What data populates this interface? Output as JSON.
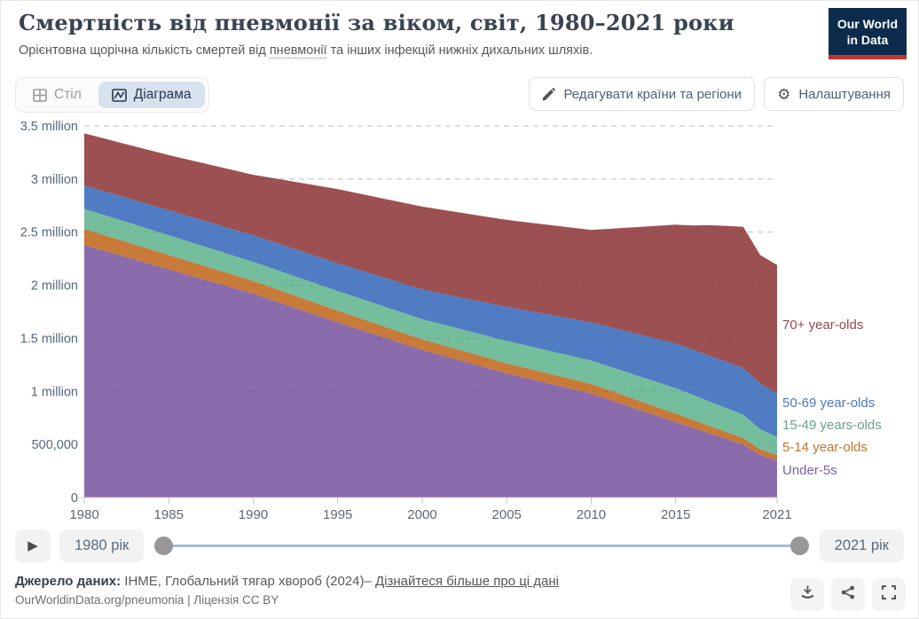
{
  "header": {
    "title": "Смертність від пневмонії за віком, світ, 1980–2021 роки",
    "subtitle_prefix": "Орієнтовна щорічна кількість смертей від ",
    "subtitle_link": "пневмонії",
    "subtitle_suffix": " та інших інфекцій нижніх дихальних шляхів.",
    "logo_line1": "Our World",
    "logo_line2": "in Data",
    "logo_bg_color": "#0d2b4c",
    "logo_accent_color": "#c0362c"
  },
  "toolbar": {
    "tab_table": "Стіл",
    "tab_chart": "Діаграма",
    "active_tab": "Діаграма",
    "active_tab_bg": "#d7e2ee",
    "edit_button": "Редагувати країни та регіони",
    "settings_button": "Налаштування"
  },
  "chart_data": {
    "type": "area",
    "stacked": true,
    "title": "Смертність від пневмонії за віком, світ, 1980–2021 роки",
    "unit": "deaths per year (millions)",
    "grid": "dashed",
    "legend_position": "right-edge-labels",
    "ylim": [
      0,
      3.5
    ],
    "y_ticks": [
      0,
      0.5,
      1,
      1.5,
      2,
      2.5,
      3,
      3.5
    ],
    "y_tick_labels": [
      "0",
      "500,000",
      "1 million",
      "1.5 million",
      "2 million",
      "2.5 million",
      "3 million",
      "3.5 million"
    ],
    "x_ticks": [
      1980,
      1985,
      1990,
      1995,
      2000,
      2005,
      2010,
      2015,
      2021
    ],
    "x": [
      1980,
      1981,
      1982,
      1983,
      1984,
      1985,
      1986,
      1987,
      1988,
      1989,
      1990,
      1991,
      1992,
      1993,
      1994,
      1995,
      1996,
      1997,
      1998,
      1999,
      2000,
      2001,
      2002,
      2003,
      2004,
      2005,
      2006,
      2007,
      2008,
      2009,
      2010,
      2011,
      2012,
      2013,
      2014,
      2015,
      2016,
      2017,
      2018,
      2019,
      2020,
      2021
    ],
    "series": [
      {
        "name": "Under-5s",
        "color": "#8a6bab",
        "label_color": "#7d61a4",
        "legend_y": 387,
        "values": [
          2.38,
          2.334,
          2.288,
          2.242,
          2.196,
          2.15,
          2.104,
          2.058,
          2.012,
          1.966,
          1.92,
          1.866,
          1.812,
          1.758,
          1.704,
          1.65,
          1.598,
          1.546,
          1.494,
          1.442,
          1.39,
          1.346,
          1.302,
          1.258,
          1.214,
          1.17,
          1.132,
          1.094,
          1.056,
          1.018,
          0.98,
          0.926,
          0.872,
          0.818,
          0.764,
          0.71,
          0.658,
          0.605,
          0.553,
          0.5,
          0.4,
          0.35
        ]
      },
      {
        "name": "5-14 year-olds",
        "color": "#c87a38",
        "label_color": "#c17332",
        "legend_y": 361,
        "values": [
          0.15,
          0.147,
          0.144,
          0.141,
          0.138,
          0.135,
          0.132,
          0.129,
          0.126,
          0.123,
          0.12,
          0.118,
          0.116,
          0.114,
          0.112,
          0.11,
          0.108,
          0.106,
          0.104,
          0.102,
          0.1,
          0.099,
          0.098,
          0.097,
          0.096,
          0.095,
          0.094,
          0.093,
          0.092,
          0.091,
          0.09,
          0.088,
          0.086,
          0.084,
          0.082,
          0.08,
          0.075,
          0.07,
          0.065,
          0.06,
          0.054,
          0.05
        ]
      },
      {
        "name": "15-49 years-olds",
        "color": "#74bd9d",
        "label_color": "#69a287",
        "legend_y": 336,
        "values": [
          0.19,
          0.189,
          0.188,
          0.187,
          0.186,
          0.185,
          0.184,
          0.183,
          0.182,
          0.181,
          0.18,
          0.181,
          0.182,
          0.183,
          0.184,
          0.185,
          0.186,
          0.187,
          0.188,
          0.189,
          0.19,
          0.194,
          0.198,
          0.202,
          0.206,
          0.21,
          0.212,
          0.214,
          0.216,
          0.218,
          0.22,
          0.224,
          0.228,
          0.232,
          0.236,
          0.24,
          0.235,
          0.23,
          0.225,
          0.22,
          0.19,
          0.17
        ]
      },
      {
        "name": "50-69 year-olds",
        "color": "#4f7cc2",
        "label_color": "#4a77bd",
        "legend_y": 311,
        "values": [
          0.22,
          0.223,
          0.226,
          0.229,
          0.232,
          0.235,
          0.238,
          0.241,
          0.244,
          0.247,
          0.25,
          0.252,
          0.254,
          0.256,
          0.258,
          0.26,
          0.264,
          0.268,
          0.272,
          0.276,
          0.28,
          0.288,
          0.296,
          0.304,
          0.312,
          0.32,
          0.328,
          0.336,
          0.344,
          0.352,
          0.36,
          0.372,
          0.384,
          0.396,
          0.408,
          0.42,
          0.425,
          0.43,
          0.435,
          0.44,
          0.43,
          0.41
        ]
      },
      {
        "name": "70+ year-olds",
        "color": "#9c5052",
        "label_color": "#944b4d",
        "legend_y": 223,
        "values": [
          0.49,
          0.496,
          0.502,
          0.508,
          0.514,
          0.52,
          0.53,
          0.54,
          0.55,
          0.56,
          0.57,
          0.596,
          0.622,
          0.648,
          0.674,
          0.7,
          0.716,
          0.732,
          0.748,
          0.764,
          0.78,
          0.788,
          0.796,
          0.804,
          0.812,
          0.82,
          0.83,
          0.84,
          0.85,
          0.86,
          0.87,
          0.92,
          0.97,
          1.02,
          1.07,
          1.12,
          1.17,
          1.23,
          1.28,
          1.33,
          1.21,
          1.21
        ]
      }
    ]
  },
  "timeline": {
    "start_label": "1980 рік",
    "end_label": "2021 рік",
    "track_color": "#a9bdd3",
    "handle_color": "#979797"
  },
  "footer": {
    "source_label": "Джерело даних:",
    "source_text": " IHME, Глобальний тягар хвороб (2024)– ",
    "source_link": "Дізнайтеся більше про ці дані",
    "byline": "OurWorldinData.org/pneumonia | Ліцензія CC BY"
  }
}
